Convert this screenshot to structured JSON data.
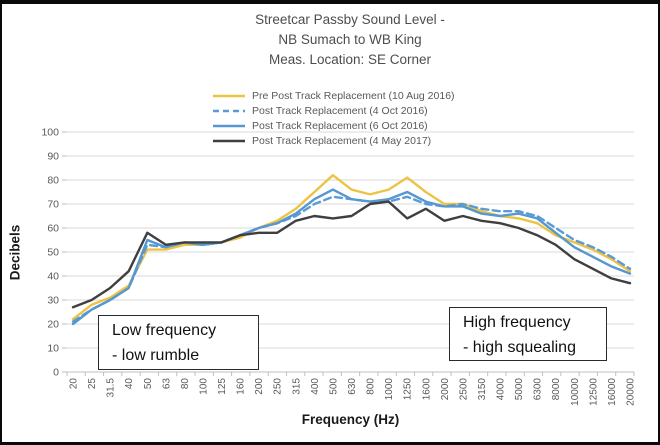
{
  "chart_data": {
    "type": "line",
    "title_lines": [
      "Streetcar Passby Sound Level -",
      "NB Sumach to WB King",
      "Meas. Location: SE Corner"
    ],
    "xlabel": "Frequency (Hz)",
    "ylabel": "Decibels",
    "ylim": [
      0,
      100
    ],
    "yticks": [
      0,
      10,
      20,
      30,
      40,
      50,
      60,
      70,
      80,
      90,
      100
    ],
    "grid": "horizontal",
    "grid_color": "#d9d9d9",
    "axis_color": "#bfbfbf",
    "tick_text_color": "#595959",
    "legend_position": "top-left-under-title",
    "categories": [
      "20",
      "25",
      "31.5",
      "40",
      "50",
      "63",
      "80",
      "100",
      "125",
      "160",
      "200",
      "250",
      "315",
      "400",
      "500",
      "630",
      "800",
      "1000",
      "1250",
      "1600",
      "2000",
      "2500",
      "3150",
      "4000",
      "5000",
      "6300",
      "8000",
      "10000",
      "12500",
      "16000",
      "20000"
    ],
    "series": [
      {
        "name": "Pre Post Track Replacement (10 Aug 2016)",
        "color": "#edc344",
        "dash": "solid",
        "values": [
          22,
          28,
          31,
          36,
          51,
          51,
          53,
          53,
          54,
          56,
          60,
          63,
          68,
          75,
          82,
          76,
          74,
          76,
          81,
          75,
          70,
          70,
          67,
          65,
          64,
          62,
          57,
          54,
          51,
          47,
          42
        ]
      },
      {
        "name": "Post Track Replacement (4 Oct 2016)",
        "color": "#5b9bd5",
        "dash": "dashed",
        "values": [
          21,
          26,
          30,
          35,
          53,
          52,
          54,
          53,
          54,
          57,
          60,
          62,
          65,
          70,
          73,
          72,
          71,
          71,
          73,
          70,
          69,
          70,
          68,
          67,
          67,
          65,
          60,
          55,
          52,
          48,
          43
        ]
      },
      {
        "name": "Post Track Replacement (6 Oct 2016)",
        "color": "#5597d1",
        "dash": "solid",
        "values": [
          20,
          26,
          30,
          35,
          55,
          52,
          54,
          53,
          54,
          57,
          60,
          62,
          66,
          72,
          76,
          72,
          71,
          72,
          75,
          71,
          69,
          69,
          66,
          65,
          66,
          64,
          58,
          52,
          48,
          44,
          41
        ]
      },
      {
        "name": "Post Track Replacement (4 May 2017)",
        "color": "#3f3f3f",
        "dash": "solid",
        "values": [
          27,
          30,
          35,
          42,
          58,
          53,
          54,
          54,
          54,
          57,
          58,
          58,
          63,
          65,
          64,
          65,
          70,
          71,
          64,
          68,
          63,
          65,
          63,
          62,
          60,
          57,
          53,
          47,
          43,
          39,
          37
        ]
      }
    ]
  },
  "annotations": {
    "low": {
      "line1": "Low frequency",
      "line2": "- low rumble"
    },
    "high": {
      "line1": "High frequency",
      "line2": "- high squealing"
    }
  }
}
